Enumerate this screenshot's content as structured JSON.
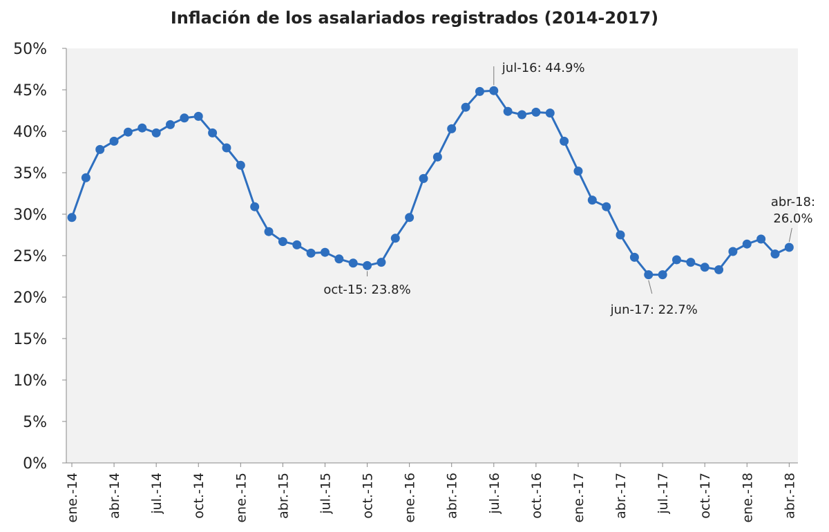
{
  "chart_data": {
    "type": "line",
    "title": "Inflación de los asalariados registrados (2014-2017)",
    "xlabel": "",
    "ylabel": "",
    "ylim": [
      0,
      50
    ],
    "y_ticks": [
      "0%",
      "5%",
      "10%",
      "15%",
      "20%",
      "25%",
      "30%",
      "35%",
      "40%",
      "45%",
      "50%"
    ],
    "x_tick_labels": [
      "ene.-14",
      "abr.-14",
      "jul.-14",
      "oct.-14",
      "ene.-15",
      "abr.-15",
      "jul.-15",
      "oct.-15",
      "ene.-16",
      "abr.-16",
      "jul.-16",
      "oct.-16",
      "ene.-17",
      "abr.-17",
      "jul.-17",
      "oct.-17",
      "ene.-18",
      "abr.-18"
    ],
    "grid": false,
    "background_color": "#f2f2f2",
    "series": [
      {
        "color": "#2e6fbf",
        "values": [
          29.6,
          34.4,
          37.8,
          38.8,
          39.9,
          40.4,
          39.8,
          40.8,
          41.6,
          41.8,
          39.8,
          38.0,
          35.9,
          30.9,
          27.9,
          26.7,
          26.3,
          25.3,
          25.4,
          24.6,
          24.1,
          23.8,
          24.2,
          27.1,
          29.6,
          34.3,
          36.9,
          40.3,
          42.9,
          44.8,
          44.9,
          42.4,
          42.0,
          42.3,
          42.2,
          38.8,
          35.2,
          31.7,
          30.9,
          27.5,
          24.8,
          22.7,
          22.7,
          24.5,
          24.2,
          23.6,
          23.3,
          25.5,
          26.4,
          27.0,
          25.2,
          26.0
        ]
      }
    ],
    "annotations": [
      {
        "text": "jul-16: 44.9%"
      },
      {
        "text": "oct-15: 23.8%"
      },
      {
        "text": "jun-17: 22.7%"
      },
      {
        "text_line1": "abr-18:",
        "text_line2": "26.0%"
      }
    ]
  }
}
